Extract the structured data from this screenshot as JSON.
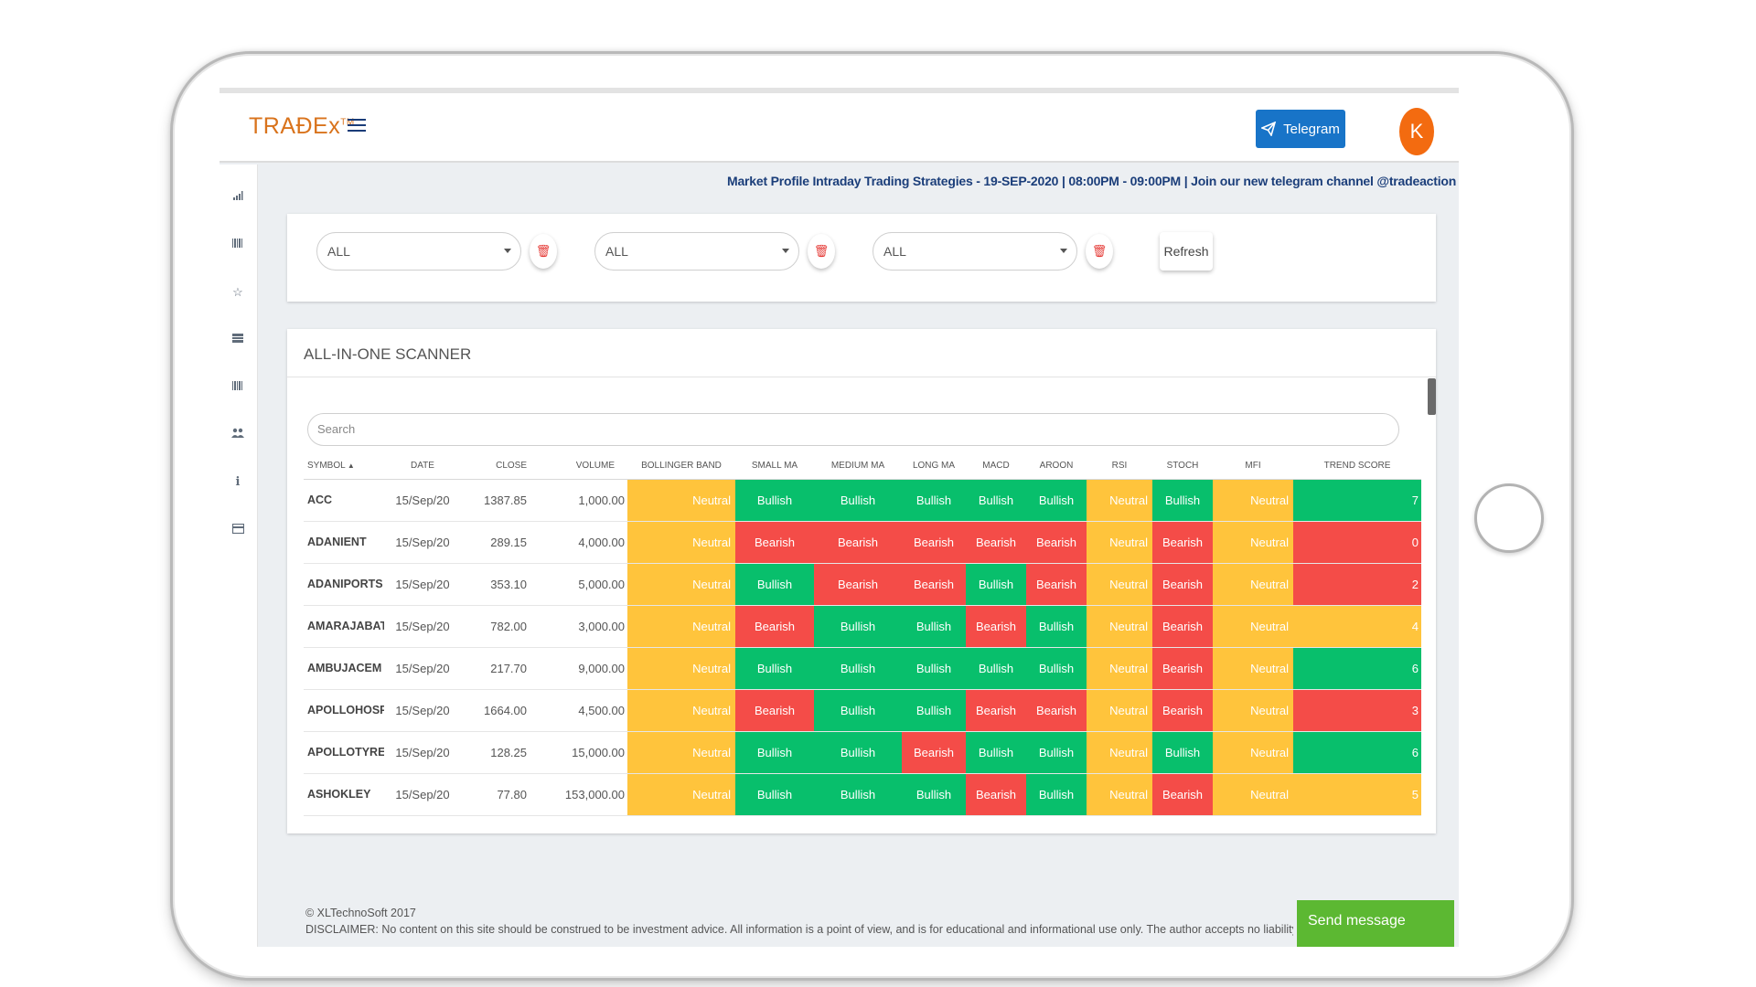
{
  "app": {
    "logo": "TRAÐEx",
    "logo_tm": "TM",
    "telegram_label": "Telegram",
    "avatar_initial": "K"
  },
  "announcement": "Market Profile Intraday Trading Strategies - 19-SEP-2020 | 08:00PM - 09:00PM | Join our new telegram channel @tradeaction",
  "filters": {
    "select1": "ALL",
    "select2": "ALL",
    "select3": "ALL",
    "refresh_label": "Refresh"
  },
  "scanner": {
    "title": "ALL-IN-ONE SCANNER",
    "search_placeholder": "Search",
    "columns": [
      "SYMBOL",
      "DATE",
      "CLOSE",
      "VOLUME",
      "BOLLINGER BAND",
      "SMALL MA",
      "MEDIUM MA",
      "LONG MA",
      "MACD",
      "AROON",
      "RSI",
      "STOCH",
      "MFI",
      "TREND SCORE"
    ],
    "sort_indicator": "▲",
    "rows": [
      {
        "symbol": "ACC",
        "date": "15/Sep/20",
        "close": "1387.85",
        "volume": "1,000.00",
        "bb": "Neutral",
        "sma": "Bullish",
        "mma": "Bullish",
        "lma": "Bullish",
        "macd": "Bullish",
        "aroon": "Bullish",
        "rsi": "Neutral",
        "stoch": "Bullish",
        "mfi": "Neutral",
        "score": "7"
      },
      {
        "symbol": "ADANIENT",
        "date": "15/Sep/20",
        "close": "289.15",
        "volume": "4,000.00",
        "bb": "Neutral",
        "sma": "Bearish",
        "mma": "Bearish",
        "lma": "Bearish",
        "macd": "Bearish",
        "aroon": "Bearish",
        "rsi": "Neutral",
        "stoch": "Bearish",
        "mfi": "Neutral",
        "score": "0"
      },
      {
        "symbol": "ADANIPORTS",
        "date": "15/Sep/20",
        "close": "353.10",
        "volume": "5,000.00",
        "bb": "Neutral",
        "sma": "Bullish",
        "mma": "Bearish",
        "lma": "Bearish",
        "macd": "Bullish",
        "aroon": "Bearish",
        "rsi": "Neutral",
        "stoch": "Bearish",
        "mfi": "Neutral",
        "score": "2"
      },
      {
        "symbol": "AMARAJABAT",
        "date": "15/Sep/20",
        "close": "782.00",
        "volume": "3,000.00",
        "bb": "Neutral",
        "sma": "Bearish",
        "mma": "Bullish",
        "lma": "Bullish",
        "macd": "Bearish",
        "aroon": "Bullish",
        "rsi": "Neutral",
        "stoch": "Bearish",
        "mfi": "Neutral",
        "score": "4"
      },
      {
        "symbol": "AMBUJACEM",
        "date": "15/Sep/20",
        "close": "217.70",
        "volume": "9,000.00",
        "bb": "Neutral",
        "sma": "Bullish",
        "mma": "Bullish",
        "lma": "Bullish",
        "macd": "Bullish",
        "aroon": "Bullish",
        "rsi": "Neutral",
        "stoch": "Bearish",
        "mfi": "Neutral",
        "score": "6"
      },
      {
        "symbol": "APOLLOHOSP",
        "date": "15/Sep/20",
        "close": "1664.00",
        "volume": "4,500.00",
        "bb": "Neutral",
        "sma": "Bearish",
        "mma": "Bullish",
        "lma": "Bullish",
        "macd": "Bearish",
        "aroon": "Bearish",
        "rsi": "Neutral",
        "stoch": "Bearish",
        "mfi": "Neutral",
        "score": "3"
      },
      {
        "symbol": "APOLLOTYRE",
        "date": "15/Sep/20",
        "close": "128.25",
        "volume": "15,000.00",
        "bb": "Neutral",
        "sma": "Bullish",
        "mma": "Bullish",
        "lma": "Bearish",
        "macd": "Bullish",
        "aroon": "Bullish",
        "rsi": "Neutral",
        "stoch": "Bullish",
        "mfi": "Neutral",
        "score": "6"
      },
      {
        "symbol": "ASHOKLEY",
        "date": "15/Sep/20",
        "close": "77.80",
        "volume": "153,000.00",
        "bb": "Neutral",
        "sma": "Bullish",
        "mma": "Bullish",
        "lma": "Bullish",
        "macd": "Bearish",
        "aroon": "Bullish",
        "rsi": "Neutral",
        "stoch": "Bearish",
        "mfi": "Neutral",
        "score": "5"
      }
    ],
    "score_colors": {
      "7": "bull",
      "0": "bear",
      "2": "bear",
      "4": "neut",
      "6": "bull",
      "3": "bear",
      "5": "neut"
    }
  },
  "footer": {
    "copyright": "© XLTechnoSoft 2017",
    "disclaimer": "DISCLAIMER: No content on this site should be construed to be investment advice. All information is a point of view, and is for educational and informational use only. The author accepts no liability for any interpretation of",
    "send_message": "Send message"
  },
  "colors": {
    "bullish": "#08bf6c",
    "bearish": "#f44c48",
    "neutral": "#ffc43c",
    "brand_orange": "#d9731c",
    "telegram_blue": "#1874c8",
    "send_green": "#5cb832"
  },
  "rail_icons": [
    "signal-icon",
    "barcode-icon",
    "star-icon",
    "list-icon",
    "barcode-icon",
    "users-icon",
    "info-icon",
    "card-icon"
  ]
}
